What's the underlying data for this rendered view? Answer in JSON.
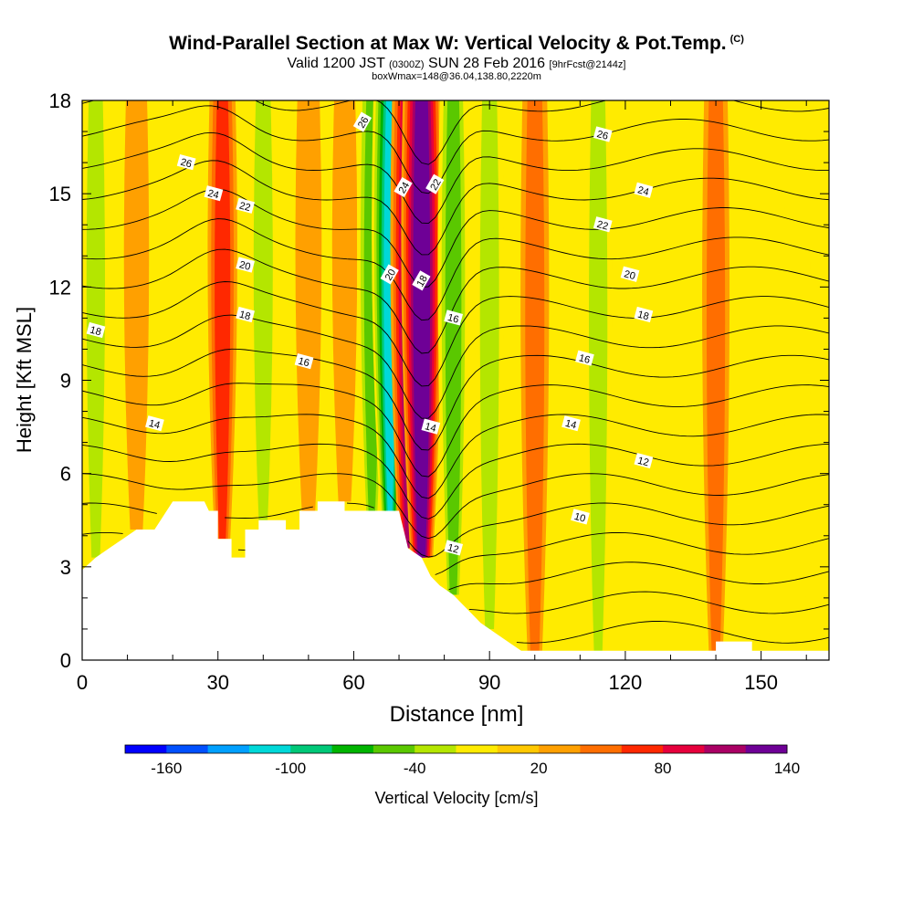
{
  "chart_data": {
    "type": "heatmap",
    "title": "Wind-Parallel Section at Max W: Vertical Velocity & Pot.Temp.",
    "title_mark": "(C)",
    "subtitle_main": "Valid 1200 JST",
    "subtitle_utc": "(0300Z)",
    "subtitle_date": "SUN 28 Feb 2016",
    "subtitle_fcst": "[9hrFcst@2144z]",
    "subtitle2": "boxWmax=148@36.04,138.80,2220m",
    "xlabel": "Distance [nm]",
    "ylabel": "Height [Kft MSL]",
    "xlim": [
      0,
      165
    ],
    "ylim": [
      0,
      18
    ],
    "x_ticks": [
      "0",
      "30",
      "60",
      "90",
      "120",
      "150"
    ],
    "y_ticks": [
      "0",
      "3",
      "6",
      "9",
      "12",
      "15",
      "18"
    ],
    "colorbar": {
      "label": "Vertical Velocity [cm/s]",
      "tick_labels": [
        "-160",
        "-100",
        "-40",
        "20",
        "80",
        "140"
      ],
      "colors": [
        "#0000ff",
        "#0050ff",
        "#00a0ff",
        "#00d8d8",
        "#00c878",
        "#00b400",
        "#5ac800",
        "#b4e600",
        "#ffeb00",
        "#ffc800",
        "#ffa000",
        "#ff6e00",
        "#ff2800",
        "#e6003c",
        "#aa0064",
        "#6e0096"
      ]
    },
    "terrain_kft": [
      [
        0,
        2.9
      ],
      [
        3,
        3.3
      ],
      [
        6,
        3.6
      ],
      [
        9,
        3.9
      ],
      [
        12,
        4.2
      ],
      [
        16,
        4.2
      ],
      [
        20,
        5.1
      ],
      [
        27,
        5.1
      ],
      [
        28,
        4.8
      ],
      [
        30,
        4.8
      ],
      [
        30,
        3.9
      ],
      [
        33,
        3.9
      ],
      [
        33,
        3.3
      ],
      [
        36,
        3.3
      ],
      [
        36,
        4.2
      ],
      [
        39,
        4.2
      ],
      [
        39,
        4.5
      ],
      [
        45,
        4.5
      ],
      [
        45,
        4.2
      ],
      [
        48,
        4.2
      ],
      [
        48,
        4.8
      ],
      [
        52,
        4.8
      ],
      [
        52,
        5.1
      ],
      [
        58,
        5.1
      ],
      [
        58,
        4.8
      ],
      [
        70,
        4.8
      ],
      [
        71,
        4.2
      ],
      [
        72,
        3.6
      ],
      [
        75,
        3.3
      ],
      [
        77,
        2.7
      ],
      [
        79,
        2.4
      ],
      [
        82,
        2.1
      ],
      [
        84,
        1.8
      ],
      [
        86,
        1.5
      ],
      [
        88,
        1.2
      ],
      [
        91,
        0.9
      ],
      [
        94,
        0.6
      ],
      [
        97,
        0.3
      ],
      [
        140,
        0.3
      ],
      [
        140,
        0.6
      ],
      [
        148,
        0.6
      ],
      [
        148,
        0.3
      ],
      [
        165,
        0.3
      ]
    ],
    "w_columns": [
      {
        "x": 3,
        "value": -30
      },
      {
        "x": 12,
        "value": 10
      },
      {
        "x": 22,
        "value": -20
      },
      {
        "x": 31,
        "value": 50
      },
      {
        "x": 40,
        "value": -40
      },
      {
        "x": 50,
        "value": 20
      },
      {
        "x": 58,
        "value": 10
      },
      {
        "x": 64,
        "value": -50
      },
      {
        "x": 68,
        "value": -110
      },
      {
        "x": 72,
        "value": 100
      },
      {
        "x": 75,
        "value": 148
      },
      {
        "x": 82,
        "value": -60
      },
      {
        "x": 90,
        "value": -40
      },
      {
        "x": 100,
        "value": 40
      },
      {
        "x": 114,
        "value": -30
      },
      {
        "x": 140,
        "value": 30
      },
      {
        "x": 158,
        "value": -20
      }
    ],
    "theta_labels": [
      {
        "text": "26",
        "x": 23,
        "y": 16.0
      },
      {
        "text": "24",
        "x": 29,
        "y": 15.0
      },
      {
        "text": "22",
        "x": 36,
        "y": 14.6
      },
      {
        "text": "20",
        "x": 36,
        "y": 12.7
      },
      {
        "text": "18",
        "x": 36,
        "y": 11.1
      },
      {
        "text": "16",
        "x": 49,
        "y": 9.6
      },
      {
        "text": "14",
        "x": 16,
        "y": 7.6
      },
      {
        "text": "18",
        "x": 3,
        "y": 10.6
      },
      {
        "text": "26",
        "x": 62,
        "y": 17.3
      },
      {
        "text": "24",
        "x": 71,
        "y": 15.2
      },
      {
        "text": "22",
        "x": 78,
        "y": 15.3
      },
      {
        "text": "20",
        "x": 68,
        "y": 12.4
      },
      {
        "text": "18",
        "x": 75,
        "y": 12.2
      },
      {
        "text": "16",
        "x": 82,
        "y": 11.0
      },
      {
        "text": "14",
        "x": 77,
        "y": 7.5
      },
      {
        "text": "12",
        "x": 82,
        "y": 3.6
      },
      {
        "text": "26",
        "x": 115,
        "y": 16.9
      },
      {
        "text": "24",
        "x": 124,
        "y": 15.1
      },
      {
        "text": "22",
        "x": 115,
        "y": 14.0
      },
      {
        "text": "20",
        "x": 121,
        "y": 12.4
      },
      {
        "text": "18",
        "x": 124,
        "y": 11.1
      },
      {
        "text": "16",
        "x": 111,
        "y": 9.7
      },
      {
        "text": "14",
        "x": 108,
        "y": 7.6
      },
      {
        "text": "12",
        "x": 124,
        "y": 6.4
      },
      {
        "text": "10",
        "x": 110,
        "y": 4.6
      }
    ]
  }
}
